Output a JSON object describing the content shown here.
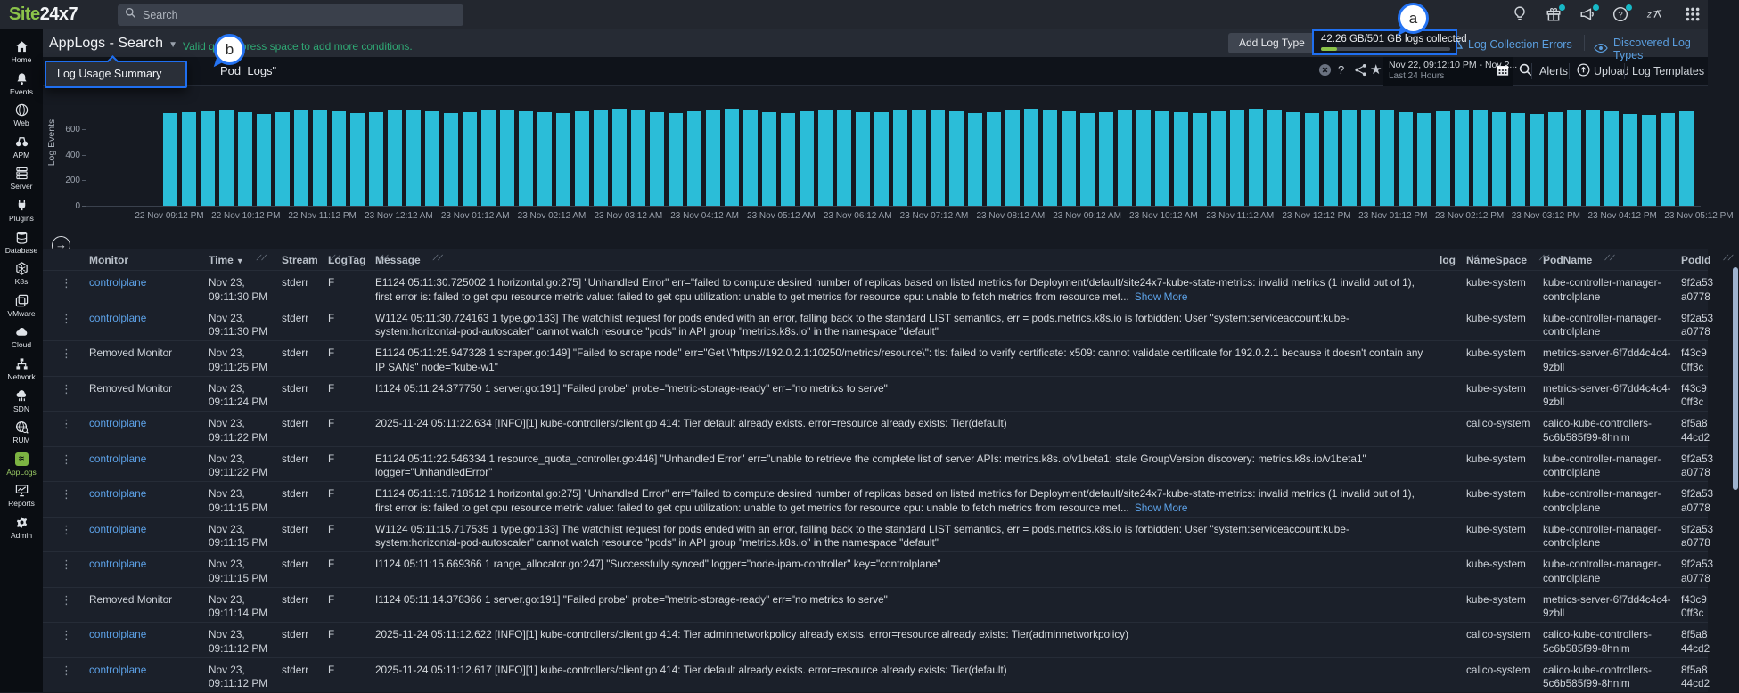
{
  "topbar": {
    "logo_green": "Site",
    "logo_white": "24x7",
    "search_placeholder": "Search",
    "icons": [
      "lightbulb-icon",
      "gift-icon",
      "megaphone-icon",
      "help-icon",
      "zia-icon",
      "app-grid-icon"
    ],
    "notification_dot_color": "#17b8c6"
  },
  "page_header": {
    "title": "AppLogs - Search",
    "query_hint": "Valid query, press space to add more conditions.",
    "add_log_type": "Add Log Type",
    "logs_collected": "42.26 GB/501 GB logs collected",
    "log_collection_errors": "Log Collection Errors",
    "discovered_log_types": "Discovered Log Types",
    "accent_blue": "#1f6ff0",
    "link_blue": "#5b9fe0",
    "hint_green": "#2fa874",
    "progress_green": "#8bc34a"
  },
  "query_bar": {
    "query_fragment": "Pod  Logs\"",
    "date_range": "Nov 22, 09:12:10 PM - Nov 2...",
    "date_preset": "Last 24 Hours",
    "alerts": "Alerts",
    "upload": "Upload",
    "log_templates": "Log Templates",
    "help_glyph": "?",
    "star_glyph": "★"
  },
  "dropdown": {
    "label": "Log Usage Summary"
  },
  "annotations": {
    "a": "a",
    "b": "b"
  },
  "chart_data": {
    "type": "bar",
    "title": "",
    "xlabel": "",
    "ylabel": "Log Events",
    "yticks": [
      0,
      200,
      400,
      600
    ],
    "ylim": [
      0,
      893
    ],
    "grid": false,
    "bar_color": "#2bbdd8",
    "x_tick_labels": [
      "22 Nov 09:12 PM",
      "22 Nov 10:12 PM",
      "22 Nov 11:12 PM",
      "23 Nov 12:12 AM",
      "23 Nov 01:12 AM",
      "23 Nov 02:12 AM",
      "23 Nov 03:12 AM",
      "23 Nov 04:12 AM",
      "23 Nov 05:12 AM",
      "23 Nov 06:12 AM",
      "23 Nov 07:12 AM",
      "23 Nov 08:12 AM",
      "23 Nov 09:12 AM",
      "23 Nov 10:12 AM",
      "23 Nov 11:12 AM",
      "23 Nov 12:12 PM",
      "23 Nov 01:12 PM",
      "23 Nov 02:12 PM",
      "23 Nov 03:12 PM",
      "23 Nov 04:12 PM",
      "23 Nov 05:12 PM"
    ],
    "values": [
      728,
      735,
      742,
      748,
      730,
      722,
      736,
      744,
      752,
      738,
      726,
      732,
      746,
      754,
      740,
      728,
      734,
      748,
      756,
      742,
      730,
      724,
      738,
      750,
      760,
      744,
      732,
      726,
      740,
      752,
      762,
      746,
      734,
      728,
      742,
      754,
      748,
      736,
      730,
      744,
      756,
      750,
      738,
      726,
      732,
      746,
      758,
      752,
      740,
      728,
      736,
      748,
      754,
      742,
      730,
      724,
      738,
      752,
      760,
      746,
      734,
      726,
      740,
      750,
      756,
      744,
      732,
      728,
      742,
      754,
      748,
      736,
      724,
      718,
      730,
      746,
      752,
      738,
      720,
      712,
      726,
      740
    ]
  },
  "table": {
    "columns": [
      "Monitor",
      "Time",
      "Stream",
      "LogTag",
      "Message",
      "log",
      "NameSpace",
      "PodName",
      "PodId"
    ],
    "rows": [
      {
        "monitor": "controlplane",
        "is_link": true,
        "time1": "Nov 23,",
        "time2": "09:11:30 PM",
        "stream": "stderr",
        "logtag": "F",
        "message": "E1124 05:11:30.725002 1 horizontal.go:275] \"Unhandled Error\" err=\"failed to compute desired number of replicas based on listed metrics for Deployment/default/site24x7-kube-state-metrics: invalid metrics (1 invalid out of 1), first error is: failed to get cpu resource metric value: failed to get cpu utilization: unable to get metrics for resource cpu: unable to fetch metrics from resource met...",
        "show_more": "Show More",
        "namespace": "kube-system",
        "podname": "kube-controller-manager-controlplane",
        "podid1": "9f2a53",
        "podid2": "a0778"
      },
      {
        "monitor": "controlplane",
        "is_link": true,
        "time1": "Nov 23,",
        "time2": "09:11:30 PM",
        "stream": "stderr",
        "logtag": "F",
        "message": "W1124 05:11:30.724163 1 type.go:183] The watchlist request for pods ended with an error, falling back to the standard LIST semantics, err = pods.metrics.k8s.io is forbidden: User \"system:serviceaccount:kube-system:horizontal-pod-autoscaler\" cannot watch resource \"pods\" in API group \"metrics.k8s.io\" in the namespace \"default\"",
        "show_more": "",
        "namespace": "kube-system",
        "podname": "kube-controller-manager-controlplane",
        "podid1": "9f2a53",
        "podid2": "a0778"
      },
      {
        "monitor": "Removed Monitor",
        "is_link": false,
        "time1": "Nov 23,",
        "time2": "09:11:25 PM",
        "stream": "stderr",
        "logtag": "F",
        "message": "E1124 05:11:25.947328 1 scraper.go:149] \"Failed to scrape node\" err=\"Get \\\"https://192.0.2.1:10250/metrics/resource\\\": tls: failed to verify certificate: x509: cannot validate certificate for 192.0.2.1 because it doesn't contain any IP SANs\" node=\"kube-w1\"",
        "show_more": "",
        "namespace": "kube-system",
        "podname": "metrics-server-6f7dd4c4c4-9zbll",
        "podid1": "f43c9",
        "podid2": "0ff3c"
      },
      {
        "monitor": "Removed Monitor",
        "is_link": false,
        "time1": "Nov 23,",
        "time2": "09:11:24 PM",
        "stream": "stderr",
        "logtag": "F",
        "message": "I1124 05:11:24.377750 1 server.go:191] \"Failed probe\" probe=\"metric-storage-ready\" err=\"no metrics to serve\"",
        "show_more": "",
        "namespace": "kube-system",
        "podname": "metrics-server-6f7dd4c4c4-9zbll",
        "podid1": "f43c9",
        "podid2": "0ff3c"
      },
      {
        "monitor": "controlplane",
        "is_link": true,
        "time1": "Nov 23,",
        "time2": "09:11:22 PM",
        "stream": "stderr",
        "logtag": "F",
        "message": "2025-11-24 05:11:22.634 [INFO][1] kube-controllers/client.go 414: Tier default already exists. error=resource already exists: Tier(default)",
        "show_more": "",
        "namespace": "calico-system",
        "podname": "calico-kube-controllers-5c6b585f99-8hnlm",
        "podid1": "8f5a8",
        "podid2": "44cd2"
      },
      {
        "monitor": "controlplane",
        "is_link": true,
        "time1": "Nov 23,",
        "time2": "09:11:22 PM",
        "stream": "stderr",
        "logtag": "F",
        "message": "E1124 05:11:22.546334 1 resource_quota_controller.go:446] \"Unhandled Error\" err=\"unable to retrieve the complete list of server APIs: metrics.k8s.io/v1beta1: stale GroupVersion discovery: metrics.k8s.io/v1beta1\" logger=\"UnhandledError\"",
        "show_more": "",
        "namespace": "kube-system",
        "podname": "kube-controller-manager-controlplane",
        "podid1": "9f2a53",
        "podid2": "a0778"
      },
      {
        "monitor": "controlplane",
        "is_link": true,
        "time1": "Nov 23,",
        "time2": "09:11:15 PM",
        "stream": "stderr",
        "logtag": "F",
        "message": "E1124 05:11:15.718512 1 horizontal.go:275] \"Unhandled Error\" err=\"failed to compute desired number of replicas based on listed metrics for Deployment/default/site24x7-kube-state-metrics: invalid metrics (1 invalid out of 1), first error is: failed to get cpu resource metric value: failed to get cpu utilization: unable to get metrics for resource cpu: unable to fetch metrics from resource met...",
        "show_more": "Show More",
        "namespace": "kube-system",
        "podname": "kube-controller-manager-controlplane",
        "podid1": "9f2a53",
        "podid2": "a0778"
      },
      {
        "monitor": "controlplane",
        "is_link": true,
        "time1": "Nov 23,",
        "time2": "09:11:15 PM",
        "stream": "stderr",
        "logtag": "F",
        "message": "W1124 05:11:15.717535 1 type.go:183] The watchlist request for pods ended with an error, falling back to the standard LIST semantics, err = pods.metrics.k8s.io is forbidden: User \"system:serviceaccount:kube-system:horizontal-pod-autoscaler\" cannot watch resource \"pods\" in API group \"metrics.k8s.io\" in the namespace \"default\"",
        "show_more": "",
        "namespace": "kube-system",
        "podname": "kube-controller-manager-controlplane",
        "podid1": "9f2a53",
        "podid2": "a0778"
      },
      {
        "monitor": "controlplane",
        "is_link": true,
        "time1": "Nov 23,",
        "time2": "09:11:15 PM",
        "stream": "stderr",
        "logtag": "F",
        "message": "I1124 05:11:15.669366 1 range_allocator.go:247] \"Successfully synced\" logger=\"node-ipam-controller\" key=\"controlplane\"",
        "show_more": "",
        "namespace": "kube-system",
        "podname": "kube-controller-manager-controlplane",
        "podid1": "9f2a53",
        "podid2": "a0778"
      },
      {
        "monitor": "Removed Monitor",
        "is_link": false,
        "time1": "Nov 23,",
        "time2": "09:11:14 PM",
        "stream": "stderr",
        "logtag": "F",
        "message": "I1124 05:11:14.378366 1 server.go:191] \"Failed probe\" probe=\"metric-storage-ready\" err=\"no metrics to serve\"",
        "show_more": "",
        "namespace": "kube-system",
        "podname": "metrics-server-6f7dd4c4c4-9zbll",
        "podid1": "f43c9",
        "podid2": "0ff3c"
      },
      {
        "monitor": "controlplane",
        "is_link": true,
        "time1": "Nov 23,",
        "time2": "09:11:12 PM",
        "stream": "stderr",
        "logtag": "F",
        "message": "2025-11-24 05:11:12.622 [INFO][1] kube-controllers/client.go 414: Tier adminnetworkpolicy already exists. error=resource already exists: Tier(adminnetworkpolicy)",
        "show_more": "",
        "namespace": "calico-system",
        "podname": "calico-kube-controllers-5c6b585f99-8hnlm",
        "podid1": "8f5a8",
        "podid2": "44cd2"
      },
      {
        "monitor": "controlplane",
        "is_link": true,
        "time1": "Nov 23,",
        "time2": "09:11:12 PM",
        "stream": "stderr",
        "logtag": "F",
        "message": "2025-11-24 05:11:12.617 [INFO][1] kube-controllers/client.go 414: Tier default already exists. error=resource already exists: Tier(default)",
        "show_more": "",
        "namespace": "calico-system",
        "podname": "calico-kube-controllers-5c6b585f99-8hnlm",
        "podid1": "8f5a8",
        "podid2": "44cd2"
      }
    ]
  },
  "sidebar": {
    "active": "AppLogs",
    "items": [
      {
        "label": "Home",
        "icon": "home-icon"
      },
      {
        "label": "Events",
        "icon": "bell-icon"
      },
      {
        "label": "Web",
        "icon": "globe-icon"
      },
      {
        "label": "APM",
        "icon": "binoculars-icon"
      },
      {
        "label": "Server",
        "icon": "server-icon"
      },
      {
        "label": "Plugins",
        "icon": "plug-icon"
      },
      {
        "label": "Database",
        "icon": "database-icon"
      },
      {
        "label": "K8s",
        "icon": "kubernetes-icon"
      },
      {
        "label": "VMware",
        "icon": "vm-icon"
      },
      {
        "label": "Cloud",
        "icon": "cloud-icon"
      },
      {
        "label": "Network",
        "icon": "network-icon"
      },
      {
        "label": "SDN",
        "icon": "sdn-cloud-icon"
      },
      {
        "label": "RUM",
        "icon": "rum-globe-icon"
      },
      {
        "label": "AppLogs",
        "icon": "applogs-icon"
      },
      {
        "label": "Reports",
        "icon": "reports-icon"
      },
      {
        "label": "Admin",
        "icon": "gear-icon"
      }
    ]
  }
}
